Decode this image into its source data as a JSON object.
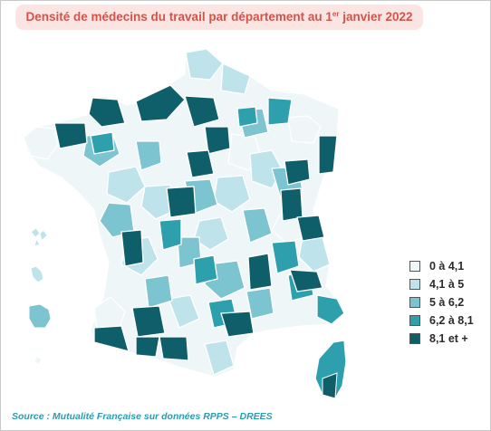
{
  "title": {
    "before": "Densité de médecins du travail par département au 1",
    "sup": "er",
    "after": " janvier 2022"
  },
  "legend": [
    {
      "label": "0 à 4,1",
      "color": "#eef6f8"
    },
    {
      "label": "4,1 à 5",
      "color": "#bfe3ea"
    },
    {
      "label": "5 à 6,2",
      "color": "#7cc4cf"
    },
    {
      "label": "6,2 à 8,1",
      "color": "#2e9fad"
    },
    {
      "label": "8,1 et +",
      "color": "#0f5f6b"
    }
  ],
  "source": "Source : Mutualité Française sur données RPPS – DREES",
  "map": {
    "territory": "France métropolitaine et DROM",
    "classes_shown": 5
  }
}
